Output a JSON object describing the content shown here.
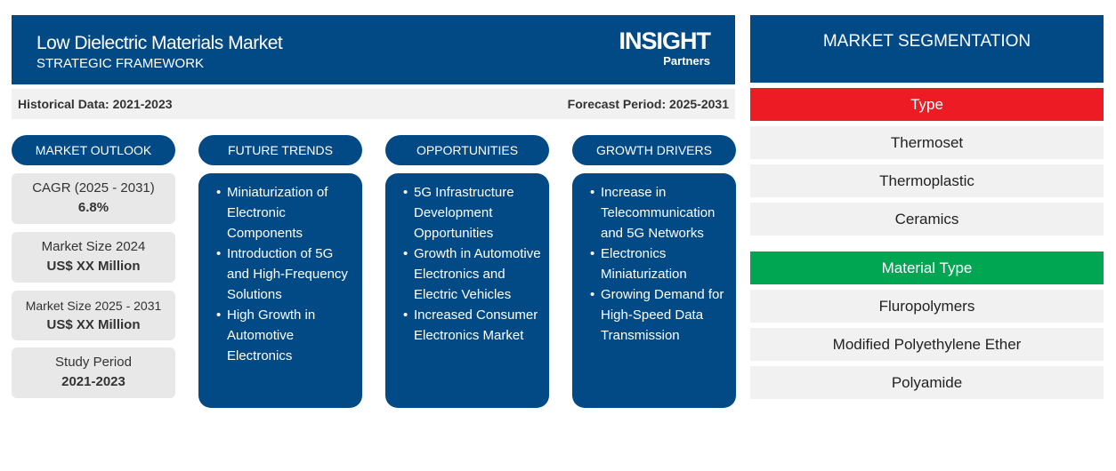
{
  "header": {
    "title": "Low Dielectric Materials Market",
    "subtitle": "STRATEGIC FRAMEWORK",
    "logo_text": "The INSIGHT Partners"
  },
  "periods": {
    "historical": "Historical Data: 2021-2023",
    "forecast": "Forecast Period: 2025-2031"
  },
  "outlook": {
    "label": "MARKET OUTLOOK",
    "items": [
      {
        "label": "CAGR (2025 - 2031)",
        "value": "6.8%"
      },
      {
        "label": "Market Size 2024",
        "value": "US$ XX Million"
      },
      {
        "label": "Market Size 2025 - 2031",
        "value": "US$ XX Million"
      },
      {
        "label": "Study Period",
        "value": "2021-2023"
      }
    ]
  },
  "columns": [
    {
      "label": "FUTURE TRENDS",
      "items": [
        "Miniaturization of Electronic Components",
        "Introduction of 5G and High-Frequency Solutions",
        "High Growth in Automotive Electronics"
      ]
    },
    {
      "label": "OPPORTUNITIES",
      "items": [
        "5G Infrastructure Development Opportunities",
        "Growth in Automotive Electronics and Electric Vehicles",
        "Increased Consumer Electronics Market"
      ]
    },
    {
      "label": "GROWTH DRIVERS",
      "items": [
        "Increase in Telecommunication and 5G Networks",
        "Electronics Miniaturization",
        "Growing Demand for High-Speed Data Transmission"
      ]
    }
  ],
  "segmentation": {
    "title": "MARKET SEGMENTATION",
    "groups": [
      {
        "label": "Type",
        "color": "#ed1c24",
        "items": [
          "Thermoset",
          "Thermoplastic",
          "Ceramics"
        ]
      },
      {
        "label": "Material Type",
        "color": "#00a651",
        "items": [
          "Fluropolymers",
          "Modified Polyethylene Ether",
          "Polyamide"
        ]
      }
    ]
  },
  "colors": {
    "navy": "#024a86"
  }
}
